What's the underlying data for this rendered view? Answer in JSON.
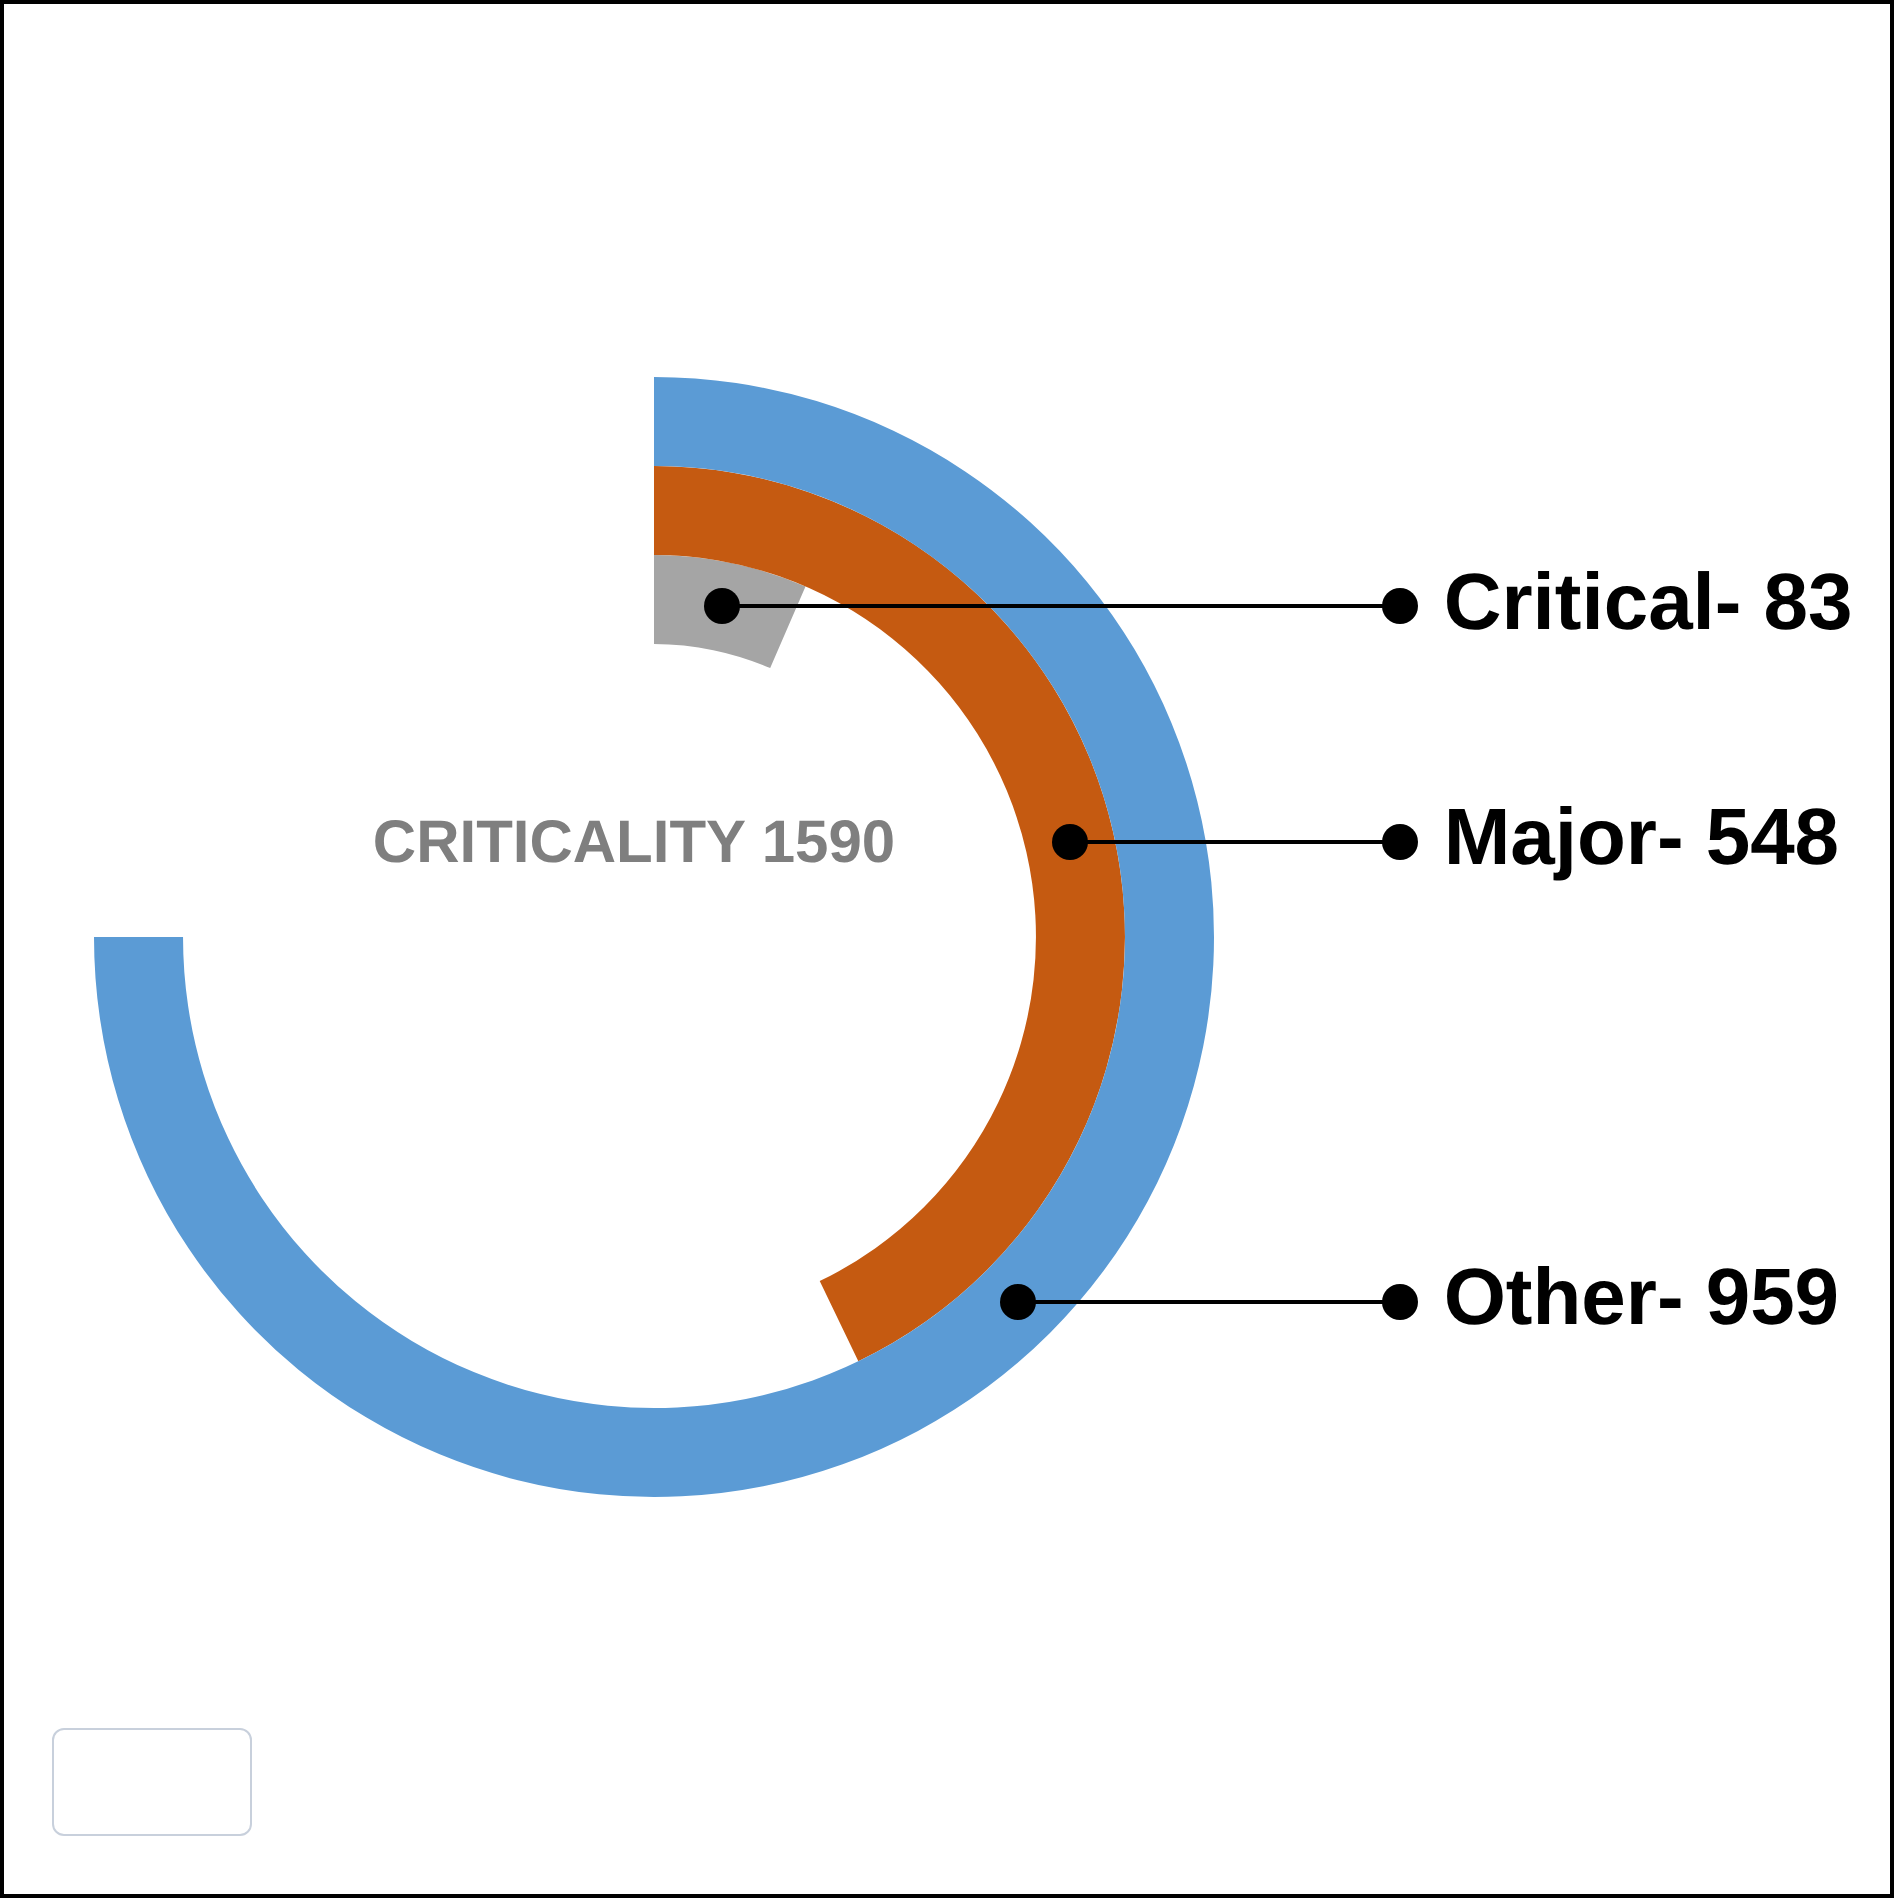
{
  "chart_data": {
    "type": "other",
    "title": "CRITICALITY 1590",
    "categories": [
      "Other-",
      "Major-",
      "Critical-"
    ],
    "values": [
      959,
      548,
      83
    ],
    "colors": [
      "#5b9bd5",
      "#c55a11",
      "#a5a5a5"
    ],
    "data_labels": true
  }
}
